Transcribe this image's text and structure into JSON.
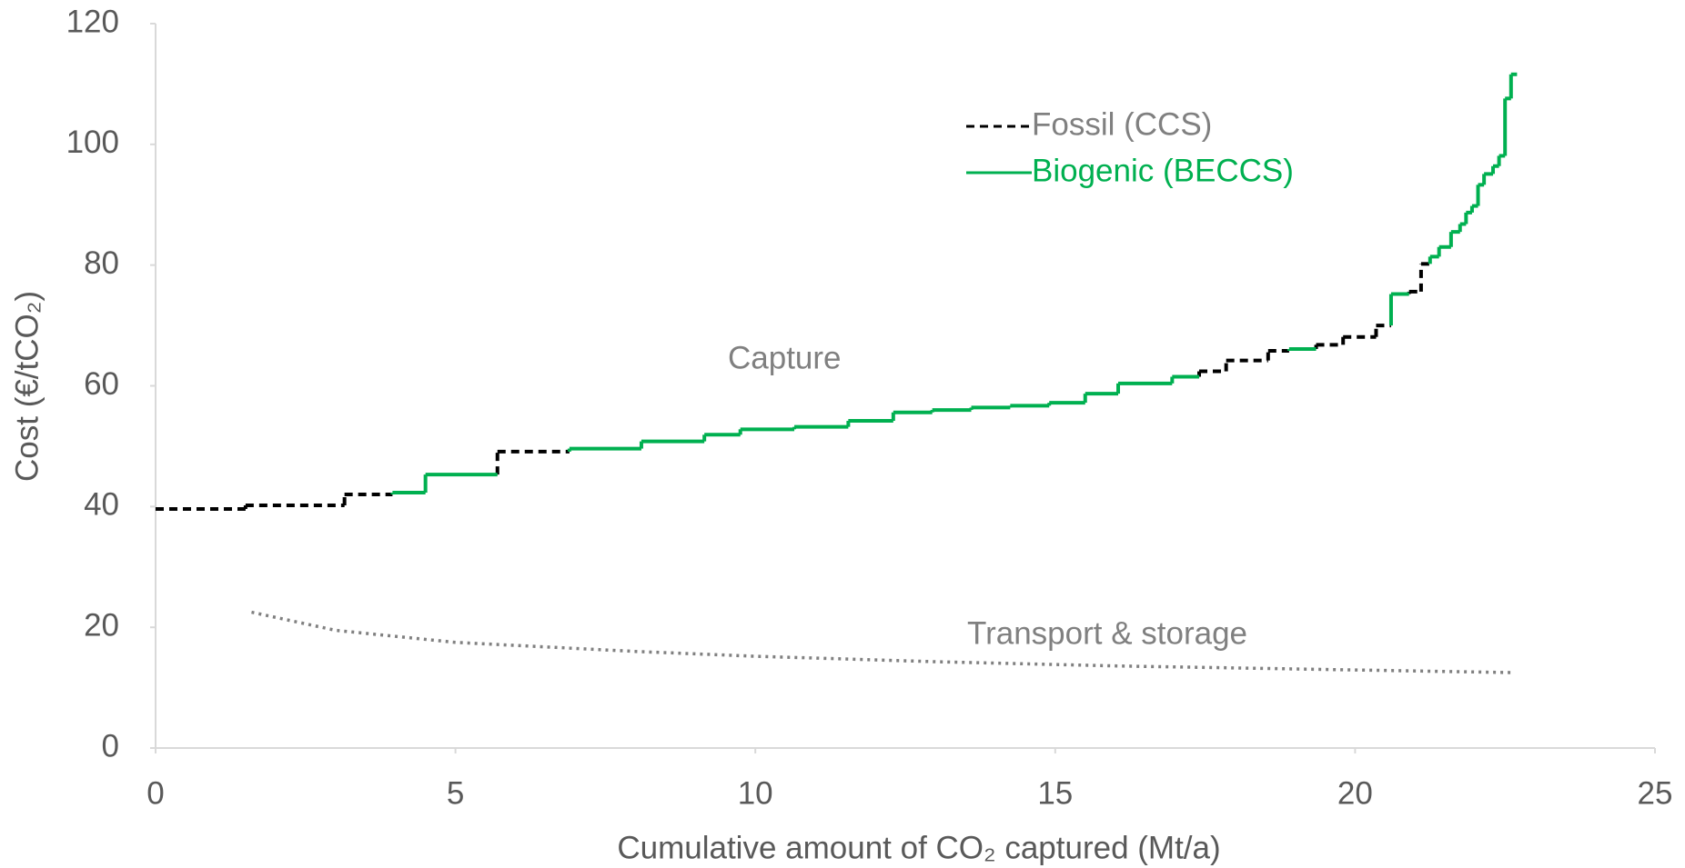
{
  "chart_data": {
    "type": "step",
    "xlabel": "Cumulative amount of CO₂ captured (Mt/a)",
    "ylabel": "Cost (€/tCO₂)",
    "xlim": [
      0,
      25
    ],
    "xticks": [
      0,
      5,
      10,
      15,
      20,
      25
    ],
    "ylim": [
      0,
      120
    ],
    "yticks": [
      0,
      20,
      40,
      60,
      80,
      100,
      120
    ],
    "legend": "top-right",
    "series": [
      {
        "name": "Fossil (CCS)",
        "color": "#000000",
        "dash": true,
        "x0": [
          0,
          1.5,
          3.15,
          5.7,
          17.4,
          17.85,
          18.55,
          19.35,
          19.8,
          20.35,
          20.9,
          21.1
        ],
        "x1": [
          1.5,
          3.15,
          3.95,
          6.9,
          17.85,
          18.55,
          18.9,
          19.8,
          20.35,
          20.6,
          21.1,
          21.25
        ],
        "values": [
          39.6,
          40.2,
          42.0,
          49.1,
          62.4,
          64.2,
          65.8,
          66.8,
          68.1,
          70.0,
          75.6,
          80.2
        ]
      },
      {
        "name": "Biogenic (BECCS)",
        "color": "#00b050",
        "dash": false,
        "x0": [
          3.95,
          4.5,
          6.9,
          8.1,
          9.15,
          9.75,
          10.65,
          11.55,
          12.3,
          12.95,
          13.6,
          14.25,
          14.9,
          15.5,
          16.05,
          16.95,
          18.9,
          20.6,
          21.25,
          21.4,
          21.6,
          21.75,
          21.85,
          21.95,
          22.05,
          22.15,
          22.3,
          22.4,
          22.5,
          22.6
        ],
        "x1": [
          4.5,
          5.7,
          8.1,
          9.15,
          9.75,
          10.65,
          11.55,
          12.3,
          12.95,
          13.6,
          14.25,
          14.9,
          15.5,
          16.05,
          16.95,
          17.4,
          19.35,
          20.9,
          21.4,
          21.6,
          21.75,
          21.85,
          21.95,
          22.05,
          22.15,
          22.3,
          22.4,
          22.5,
          22.6,
          22.7
        ],
        "values": [
          42.3,
          45.3,
          49.6,
          50.8,
          51.9,
          52.8,
          53.2,
          54.2,
          55.6,
          56.0,
          56.4,
          56.7,
          57.2,
          58.7,
          60.4,
          61.5,
          66.1,
          75.2,
          81.4,
          83.0,
          85.5,
          86.8,
          88.7,
          89.8,
          93.3,
          95.1,
          96.4,
          98.1,
          107.6,
          111.6
        ]
      }
    ],
    "transport": {
      "color": "#808080",
      "x": [
        1.6,
        3,
        5,
        8,
        10,
        13,
        16,
        19,
        22.6
      ],
      "values": [
        22.5,
        19.5,
        17.5,
        16,
        15.2,
        14.3,
        13.6,
        13.1,
        12.5
      ]
    },
    "annotations": [
      "Capture",
      "Transport & storage"
    ]
  }
}
